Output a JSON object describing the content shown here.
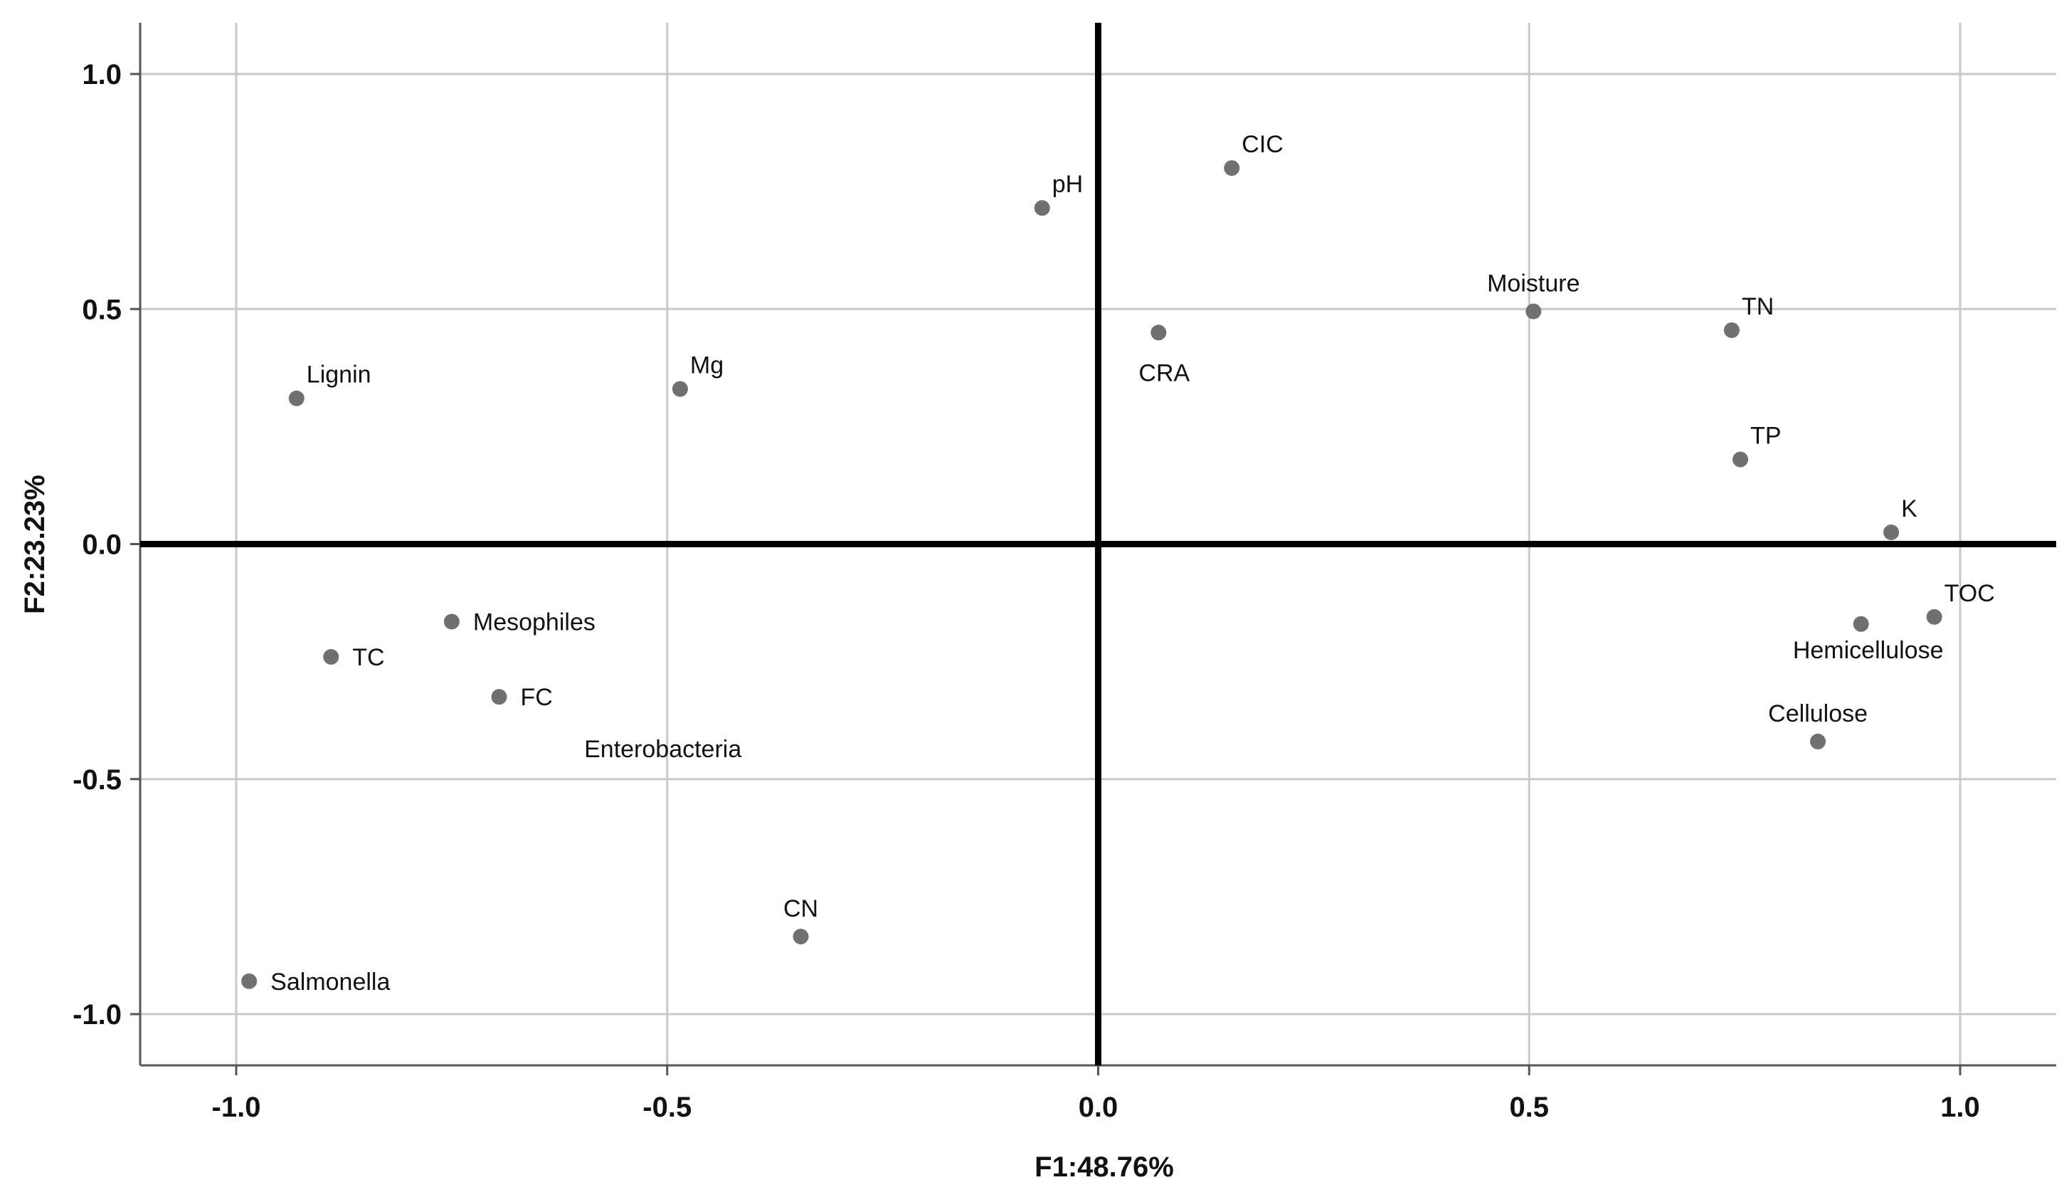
{
  "chart_data": {
    "type": "scatter",
    "title": "",
    "xlabel": "F1:48.76%",
    "ylabel": "F2:23.23%",
    "xlim": [
      -1.1,
      1.1
    ],
    "ylim": [
      -1.1,
      1.1
    ],
    "x_ticks": [
      -1.0,
      -0.5,
      0.0,
      0.5,
      1.0
    ],
    "x_tick_labels": [
      "-1.0",
      "-0.5",
      "0.0",
      "0.5",
      "1.0"
    ],
    "y_ticks": [
      1.0,
      0.5,
      0.0,
      -0.5,
      -1.0
    ],
    "y_tick_labels": [
      "1.0",
      "0.5",
      "0.0",
      "-0.5",
      "-1.0"
    ],
    "grid": true,
    "reference_lines": [
      0,
      0
    ],
    "colors": {
      "point": "#707070",
      "grid": "#c8c8c8",
      "axis": "#000000",
      "text": "#111111"
    },
    "points": [
      {
        "label": "pH",
        "x": -0.065,
        "y": 0.715,
        "label_pos": "ne"
      },
      {
        "label": "CIC",
        "x": 0.155,
        "y": 0.8,
        "label_pos": "ne"
      },
      {
        "label": "CRA",
        "x": 0.07,
        "y": 0.45,
        "label_pos": "s"
      },
      {
        "label": "Moisture",
        "x": 0.505,
        "y": 0.495,
        "label_pos": "n"
      },
      {
        "label": "TN",
        "x": 0.735,
        "y": 0.455,
        "label_pos": "ne"
      },
      {
        "label": "TP",
        "x": 0.745,
        "y": 0.18,
        "label_pos": "ne"
      },
      {
        "label": "K",
        "x": 0.92,
        "y": 0.025,
        "label_pos": "ne"
      },
      {
        "label": "TOC",
        "x": 0.97,
        "y": -0.155,
        "label_pos": "ne"
      },
      {
        "label": "Hemicellulose",
        "x": 0.885,
        "y": -0.17,
        "label_pos": "se"
      },
      {
        "label": "Cellulose",
        "x": 0.835,
        "y": -0.42,
        "label_pos": "n"
      },
      {
        "label": "Lignin",
        "x": -0.93,
        "y": 0.31,
        "label_pos": "ne"
      },
      {
        "label": "Mg",
        "x": -0.485,
        "y": 0.33,
        "label_pos": "ne"
      },
      {
        "label": "Mesophiles",
        "x": -0.75,
        "y": -0.165,
        "label_pos": "e"
      },
      {
        "label": "TC",
        "x": -0.89,
        "y": -0.24,
        "label_pos": "e"
      },
      {
        "label": "FC",
        "x": -0.695,
        "y": -0.325,
        "label_pos": "e"
      },
      {
        "label": "CN",
        "x": -0.345,
        "y": -0.835,
        "label_pos": "n"
      },
      {
        "label": "Salmonella",
        "x": -0.985,
        "y": -0.93,
        "label_pos": "e"
      }
    ],
    "annotations": [
      {
        "text": "Enterobacteria",
        "x": -0.505,
        "y": -0.435
      }
    ]
  }
}
